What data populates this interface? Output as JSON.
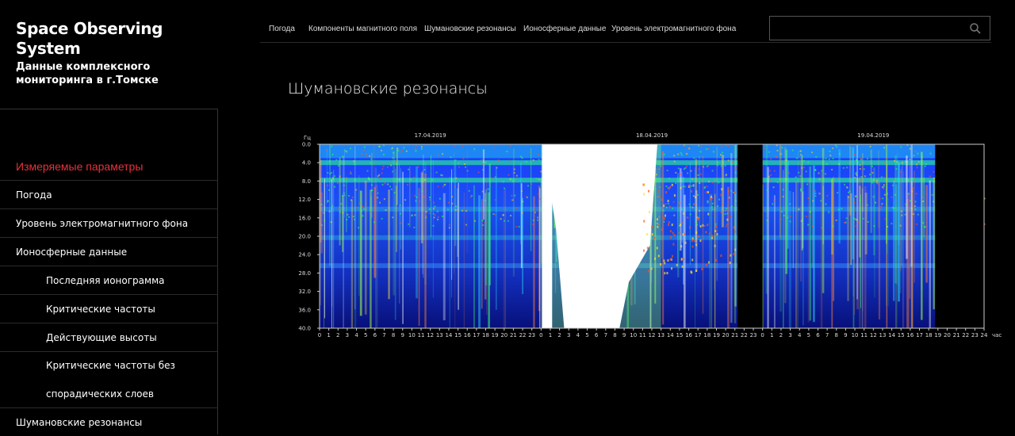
{
  "brand": {
    "title": "Space Observing System",
    "subtitle": "Данные комплексного мониторинга в г.Томске"
  },
  "topnav": {
    "links": [
      "Погода",
      "Компоненты магнитного поля",
      "Шумановские резонансы",
      "Ионосферные данные",
      "Уровень электромагнитного фона"
    ]
  },
  "search": {
    "placeholder": "",
    "icon": "search-icon"
  },
  "sidebar": {
    "section_title": "Измеряемые параметры",
    "items": [
      {
        "label": "Погода",
        "indent": false
      },
      {
        "label": "Уровень электромагнитного фона",
        "indent": false
      },
      {
        "label": "Ионосферные данные",
        "indent": false
      },
      {
        "label": "Последняя ионограмма",
        "indent": true
      },
      {
        "label": "Критические частоты",
        "indent": true
      },
      {
        "label": "Действующие высоты",
        "indent": true
      },
      {
        "label": "Критические частоты без спорадических слоев",
        "indent": true
      },
      {
        "label": "Шумановские резонансы",
        "indent": false
      }
    ]
  },
  "page": {
    "title": "Шумановские резонансы"
  },
  "colors": {
    "accent": "#e8323a",
    "background": "#000000"
  },
  "chart_data": {
    "type": "heatmap",
    "title": "",
    "ylabel": "Гц",
    "xlabel": "час",
    "ylim": [
      0,
      40
    ],
    "yticks": [
      "0.0",
      "4.0",
      "8.0",
      "12.0",
      "16.0",
      "20.0",
      "24.0",
      "28.0",
      "32.0",
      "36.0",
      "40.0"
    ],
    "dates": [
      "17.04.2019",
      "18.04.2019",
      "19.04.2019"
    ],
    "hours_per_day": 24,
    "xtick_groups": [
      [
        "0",
        "1",
        "2",
        "3",
        "4",
        "5",
        "6",
        "7",
        "8",
        "9",
        "10",
        "11",
        "12",
        "13",
        "14",
        "15",
        "16",
        "17",
        "18",
        "19",
        "20",
        "21",
        "22",
        "23"
      ],
      [
        "0",
        "1",
        "2",
        "3",
        "4",
        "5",
        "6",
        "7",
        "8",
        "9",
        "10",
        "11",
        "12",
        "13",
        "14",
        "15",
        "16",
        "17",
        "18",
        "19",
        "20",
        "21",
        "22",
        "23"
      ],
      [
        "0",
        "1",
        "2",
        "3",
        "4",
        "5",
        "6",
        "7",
        "8",
        "9",
        "10",
        "11",
        "12",
        "13",
        "14",
        "15",
        "16",
        "17",
        "18",
        "19",
        "20",
        "21",
        "22",
        "23",
        "24"
      ]
    ],
    "data_gaps_hours": [
      [
        45.3,
        48.0
      ],
      [
        66.7,
        72.0
      ]
    ],
    "high_power_interval_hours": [
      24.0,
      37.0
    ],
    "resonance_bands_hz": [
      4,
      7.8,
      14.1,
      20.3,
      26.4
    ]
  }
}
